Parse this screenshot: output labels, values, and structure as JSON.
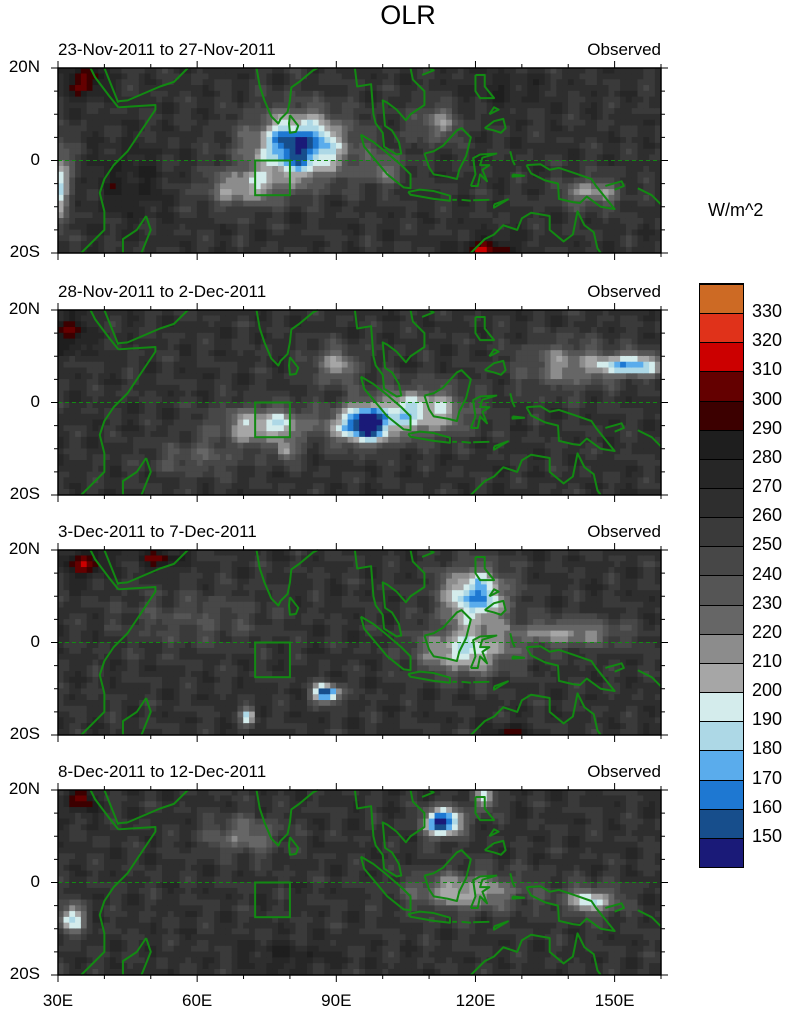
{
  "chart_data": {
    "type": "heatmap",
    "title": "OLR",
    "units": "W/m^2",
    "xlim": [
      30,
      160
    ],
    "ylim": [
      -20,
      20
    ],
    "x_ticks": [
      {
        "value": 30,
        "label": "30E"
      },
      {
        "value": 60,
        "label": "60E"
      },
      {
        "value": 90,
        "label": "90E"
      },
      {
        "value": 120,
        "label": "120E"
      },
      {
        "value": 150,
        "label": "150E"
      }
    ],
    "y_ticks": [
      {
        "value": 20,
        "label": "20N"
      },
      {
        "value": 0,
        "label": "0"
      },
      {
        "value": -20,
        "label": "20S"
      }
    ],
    "colorbar": {
      "levels": [
        150,
        160,
        170,
        180,
        190,
        200,
        210,
        220,
        230,
        240,
        250,
        260,
        270,
        280,
        290,
        300,
        310,
        320,
        330
      ],
      "labels": [
        "150",
        "160",
        "170",
        "180",
        "190",
        "200",
        "210",
        "220",
        "230",
        "240",
        "250",
        "260",
        "270",
        "280",
        "290",
        "300",
        "310",
        "320",
        "330"
      ],
      "colors": [
        "#1a1a78",
        "#174e8c",
        "#1e78d2",
        "#5aacec",
        "#add8e6",
        "#d4ecec",
        "#a6a6a6",
        "#8c8c8c",
        "#666666",
        "#555555",
        "#474747",
        "#3a3a3a",
        "#2e2e2e",
        "#262626",
        "#1e1e1e",
        "#3c0000",
        "#640000",
        "#cc0000",
        "#e0321a",
        "#cd6a24"
      ]
    },
    "box": {
      "lon": [
        72.5,
        80
      ],
      "lat": [
        -7.5,
        0
      ]
    },
    "coast_color": "#128a12",
    "panels": [
      {
        "left": "23-Nov-2011 to 27-Nov-2011",
        "right": "Observed",
        "base": 262,
        "anomalies": [
          [
            82,
            3,
            10,
            7,
            -115
          ],
          [
            70,
            -6,
            8,
            4,
            -55
          ],
          [
            112,
            8,
            5,
            4,
            -45
          ],
          [
            30,
            -5,
            3,
            8,
            -75
          ],
          [
            145,
            -7,
            6,
            3,
            -55
          ],
          [
            36,
            17,
            4,
            3,
            45
          ],
          [
            123,
            -20,
            6,
            3,
            45
          ],
          [
            45,
            -5,
            8,
            8,
            18
          ],
          [
            125,
            15,
            10,
            4,
            12
          ],
          [
            100,
            -2,
            5,
            4,
            -35
          ]
        ]
      },
      {
        "left": "28-Nov-2011 to 2-Dec-2011",
        "right": "Observed",
        "base": 262,
        "anomalies": [
          [
            96,
            -5,
            6,
            4,
            -120
          ],
          [
            108,
            -2,
            10,
            5,
            -75
          ],
          [
            75,
            -5,
            10,
            4,
            -70
          ],
          [
            79,
            -11,
            2,
            2,
            -55
          ],
          [
            154,
            8,
            7,
            2.5,
            -85
          ],
          [
            140,
            8,
            10,
            5,
            -45
          ],
          [
            33,
            15,
            3,
            4,
            42
          ],
          [
            90,
            8,
            5,
            4,
            -50
          ],
          [
            60,
            -12,
            10,
            4,
            -25
          ]
        ]
      },
      {
        "left": "3-Dec-2011 to 7-Dec-2011",
        "right": "Observed",
        "base": 262,
        "anomalies": [
          [
            120,
            10,
            7,
            6,
            -95
          ],
          [
            118,
            -2,
            10,
            5,
            -70
          ],
          [
            88,
            -11,
            3,
            2,
            -115
          ],
          [
            71,
            -16,
            1.5,
            2,
            -75
          ],
          [
            140,
            2,
            12,
            3,
            -50
          ],
          [
            36,
            17,
            4,
            3,
            48
          ],
          [
            52,
            18,
            5,
            2,
            35
          ],
          [
            60,
            5,
            15,
            6,
            -20
          ],
          [
            127,
            -20,
            4,
            2,
            35
          ]
        ]
      },
      {
        "left": "8-Dec-2011 to 12-Dec-2011",
        "right": "Observed",
        "base": 262,
        "anomalies": [
          [
            113,
            13,
            4,
            3,
            -125
          ],
          [
            118,
            -2,
            12,
            4,
            -60
          ],
          [
            145,
            -4,
            6,
            3,
            -70
          ],
          [
            33,
            -8,
            3,
            3,
            -75
          ],
          [
            70,
            10,
            8,
            4,
            -40
          ],
          [
            35,
            18,
            3,
            3,
            42
          ],
          [
            80,
            -16,
            10,
            3,
            15
          ],
          [
            122,
            18,
            2,
            3,
            -70
          ]
        ]
      }
    ],
    "coastlines": [
      [
        [
          43,
          12.5
        ],
        [
          42,
          15
        ],
        [
          40,
          20
        ]
      ],
      [
        [
          43,
          11.5
        ],
        [
          41,
          14
        ],
        [
          38,
          18
        ],
        [
          37,
          20
        ]
      ],
      [
        [
          43,
          12.8
        ],
        [
          45,
          13
        ],
        [
          52,
          16
        ],
        [
          55,
          17
        ],
        [
          58,
          20
        ]
      ],
      [
        [
          43,
          11.5
        ],
        [
          51,
          12
        ],
        [
          51,
          11
        ],
        [
          49,
          8
        ],
        [
          45,
          2
        ],
        [
          42,
          -1
        ],
        [
          40,
          -4
        ],
        [
          39,
          -7
        ],
        [
          40,
          -11
        ],
        [
          40,
          -15
        ],
        [
          37,
          -18
        ],
        [
          35,
          -20
        ]
      ],
      [
        [
          49,
          -12
        ],
        [
          50,
          -15
        ],
        [
          48,
          -20
        ]
      ],
      [
        [
          44,
          -20
        ],
        [
          44,
          -17
        ],
        [
          47,
          -15
        ],
        [
          49,
          -12
        ]
      ],
      [
        [
          72.8,
          20
        ],
        [
          73.5,
          16
        ],
        [
          74.5,
          13
        ],
        [
          76,
          9.5
        ],
        [
          77.5,
          8
        ],
        [
          78,
          9
        ],
        [
          79.5,
          10.5
        ],
        [
          80,
          13
        ],
        [
          80.3,
          15.8
        ],
        [
          82,
          17
        ],
        [
          85,
          19.5
        ],
        [
          86,
          20
        ]
      ],
      [
        [
          80,
          9.8
        ],
        [
          81.8,
          7.5
        ],
        [
          81.3,
          6.2
        ],
        [
          80,
          6
        ],
        [
          79.8,
          8
        ],
        [
          80,
          9.8
        ]
      ],
      [
        [
          94,
          20
        ],
        [
          94.5,
          16
        ],
        [
          97.5,
          16.5
        ],
        [
          98,
          10
        ],
        [
          98.5,
          8
        ],
        [
          100,
          6
        ],
        [
          100.3,
          3
        ],
        [
          103,
          1.3
        ],
        [
          104,
          1.5
        ],
        [
          103.5,
          4
        ],
        [
          102,
          6.5
        ],
        [
          100.5,
          7.5
        ],
        [
          100,
          13
        ],
        [
          101,
          12.5
        ],
        [
          103,
          11
        ],
        [
          105,
          8.7
        ],
        [
          106,
          10
        ],
        [
          109,
          12
        ],
        [
          109,
          15
        ],
        [
          106.5,
          17.5
        ],
        [
          106,
          20
        ]
      ],
      [
        [
          95.3,
          5.6
        ],
        [
          98,
          4
        ],
        [
          100.5,
          2
        ],
        [
          104,
          -1
        ],
        [
          106,
          -3
        ],
        [
          106,
          -6
        ],
        [
          104.5,
          -5.8
        ],
        [
          101,
          -3
        ],
        [
          98.5,
          0
        ],
        [
          96,
          3
        ],
        [
          95.3,
          5.6
        ]
      ],
      [
        [
          105.5,
          -6.8
        ],
        [
          108,
          -6.3
        ],
        [
          111,
          -6.6
        ],
        [
          114.5,
          -7.6
        ],
        [
          114.5,
          -8.7
        ],
        [
          111,
          -8.3
        ],
        [
          106,
          -7.4
        ],
        [
          105.5,
          -6.8
        ]
      ],
      [
        [
          115,
          -8.5
        ],
        [
          116,
          -8.5
        ]
      ],
      [
        [
          117,
          -8.5
        ],
        [
          119,
          -8.7
        ]
      ],
      [
        [
          119.5,
          -8.6
        ],
        [
          123,
          -8.5
        ]
      ],
      [
        [
          124,
          -9.5
        ],
        [
          127,
          -8.4
        ],
        [
          124,
          -10.2
        ],
        [
          124,
          -9.5
        ]
      ],
      [
        [
          109,
          1.5
        ],
        [
          110,
          -1.5
        ],
        [
          111,
          -3
        ],
        [
          114,
          -3.5
        ],
        [
          116,
          -4
        ],
        [
          116.5,
          -2
        ],
        [
          118,
          1
        ],
        [
          119,
          5
        ],
        [
          117,
          7
        ],
        [
          116,
          6.5
        ],
        [
          113,
          3.2
        ],
        [
          111,
          2
        ],
        [
          109,
          1.5
        ]
      ],
      [
        [
          119,
          -5.5
        ],
        [
          120,
          -3
        ],
        [
          119.5,
          0.5
        ],
        [
          121,
          1.3
        ],
        [
          124.5,
          1.5
        ],
        [
          121.5,
          0.6
        ],
        [
          121,
          -1
        ],
        [
          123,
          -1
        ],
        [
          121.5,
          -2
        ],
        [
          122.5,
          -4.5
        ],
        [
          121,
          -3
        ],
        [
          120.5,
          -5.5
        ],
        [
          119,
          -5.5
        ]
      ],
      [
        [
          122,
          7
        ],
        [
          124,
          8.5
        ],
        [
          126,
          9
        ],
        [
          126.5,
          7
        ],
        [
          125.5,
          6
        ],
        [
          124,
          6.5
        ],
        [
          122,
          7
        ]
      ],
      [
        [
          120,
          18.5
        ],
        [
          122,
          18.5
        ],
        [
          122,
          16
        ],
        [
          124,
          13.5
        ],
        [
          121,
          13.5
        ],
        [
          120,
          15
        ],
        [
          120,
          18.5
        ]
      ],
      [
        [
          123,
          10
        ],
        [
          124,
          11.5
        ],
        [
          125,
          11
        ],
        [
          123,
          10
        ]
      ],
      [
        [
          108.5,
          18.5
        ],
        [
          111,
          19.5
        ],
        [
          110,
          20
        ]
      ],
      [
        [
          127.5,
          2
        ],
        [
          128,
          0
        ],
        [
          128.5,
          -1
        ]
      ],
      [
        [
          128,
          -3
        ],
        [
          130.5,
          -3.3
        ],
        [
          128,
          -3.5
        ],
        [
          128,
          -3
        ]
      ],
      [
        [
          131,
          -1
        ],
        [
          134,
          -0.8
        ],
        [
          136,
          -2
        ],
        [
          138,
          -1.6
        ],
        [
          141,
          -2.6
        ],
        [
          145,
          -4
        ],
        [
          146,
          -5.5
        ],
        [
          148,
          -8
        ],
        [
          150,
          -10.5
        ],
        [
          147,
          -10
        ],
        [
          144,
          -7.8
        ],
        [
          142.5,
          -9.2
        ],
        [
          141,
          -9
        ],
        [
          138,
          -8.3
        ],
        [
          137.8,
          -5
        ],
        [
          135,
          -4.3
        ],
        [
          132,
          -2.8
        ],
        [
          131,
          -1
        ]
      ],
      [
        [
          119,
          -20
        ],
        [
          122,
          -17
        ],
        [
          124,
          -16
        ],
        [
          126,
          -14
        ],
        [
          129,
          -15
        ],
        [
          130,
          -12.5
        ],
        [
          132,
          -11.3
        ],
        [
          136,
          -12
        ],
        [
          136,
          -15
        ],
        [
          139,
          -17.5
        ],
        [
          141,
          -16
        ],
        [
          142,
          -11
        ],
        [
          143.5,
          -14
        ],
        [
          145.5,
          -15.5
        ],
        [
          146.3,
          -19
        ],
        [
          147,
          -20
        ]
      ],
      [
        [
          148,
          -5.5
        ],
        [
          151.5,
          -4.5
        ],
        [
          152,
          -5.5
        ],
        [
          150,
          -6.3
        ]
      ],
      [
        [
          155,
          -6
        ],
        [
          158,
          -7.5
        ],
        [
          160,
          -9.5
        ]
      ]
    ]
  }
}
